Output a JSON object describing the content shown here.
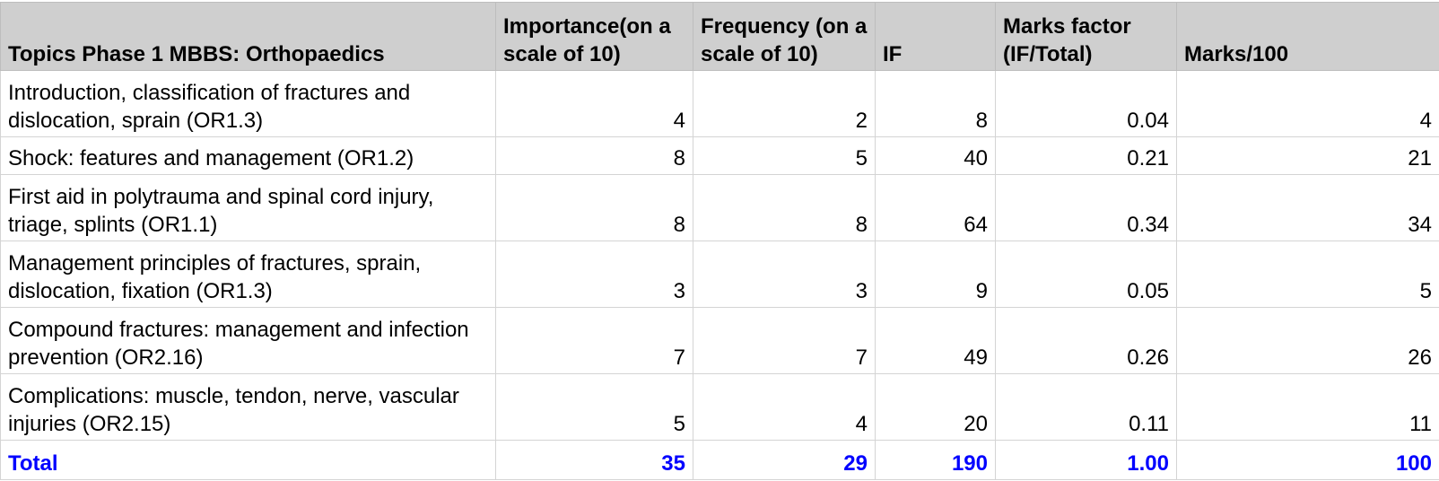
{
  "table": {
    "header": [
      "Topics Phase 1 MBBS: Orthopaedics",
      "Importance(on a scale of 10)",
      "Frequency (on a scale of 10)",
      "IF",
      "Marks factor (IF/Total)",
      "Marks/100"
    ],
    "rows": [
      [
        "Introduction, classification of fractures and dislocation, sprain (OR1.3)",
        4,
        2,
        8,
        0.04,
        4
      ],
      [
        "Shock: features and management (OR1.2)",
        8,
        5,
        40,
        0.21,
        21
      ],
      [
        "First aid in polytrauma and spinal cord injury, triage, splints (OR1.1)",
        8,
        8,
        64,
        0.34,
        34
      ],
      [
        "Management principles of fractures, sprain, dislocation, fixation (OR1.3)",
        3,
        3,
        9,
        0.05,
        5
      ],
      [
        "Compound fractures: management and infection prevention (OR2.16)",
        7,
        7,
        49,
        0.26,
        26
      ],
      [
        "Complications: muscle, tendon, nerve, vascular injuries (OR2.15)",
        5,
        4,
        20,
        0.11,
        11
      ]
    ],
    "total": [
      "Total",
      35,
      29,
      190,
      "1.00",
      100
    ]
  }
}
